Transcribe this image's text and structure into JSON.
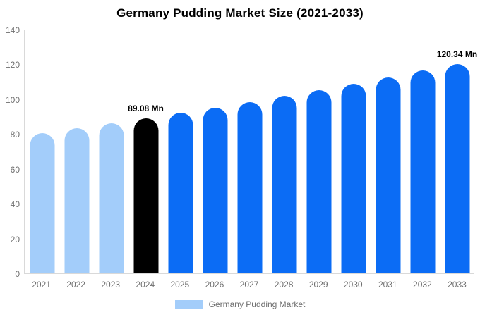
{
  "header": {
    "title": "Germany Pudding Market Size (2021-2033)"
  },
  "chart_data": {
    "type": "bar",
    "title": "Germany Pudding Market Size (2021-2033)",
    "categories": [
      "2021",
      "2022",
      "2023",
      "2024",
      "2025",
      "2026",
      "2027",
      "2028",
      "2029",
      "2030",
      "2031",
      "2032",
      "2033"
    ],
    "values": [
      80.55,
      83.29,
      86.13,
      89.08,
      92.11,
      95.24,
      98.48,
      101.83,
      105.29,
      108.87,
      112.57,
      116.4,
      120.34
    ],
    "bar_colors": [
      "#a3cdfa",
      "#a3cdfa",
      "#a3cdfa",
      "#000000",
      "#0b6cf5",
      "#0b6cf5",
      "#0b6cf5",
      "#0b6cf5",
      "#0b6cf5",
      "#0b6cf5",
      "#0b6cf5",
      "#0b6cf5",
      "#0b6cf5"
    ],
    "annotations": [
      {
        "index": 3,
        "text": "89.08 Mn"
      },
      {
        "index": 12,
        "text": "120.34 Mn"
      }
    ],
    "xlabel": "",
    "ylabel": "",
    "ylim": [
      0,
      140
    ],
    "yticks": [
      0,
      20,
      40,
      60,
      80,
      100,
      120,
      140
    ],
    "grid": false,
    "legend": {
      "label": "Germany Pudding Market",
      "swatch_color": "#a3cdfa",
      "position": "bottom-center"
    }
  },
  "colors": {
    "background": "#ffffff",
    "axis_line": "#d9d9d9",
    "tick_text": "#6e6e6e",
    "title_text": "#000000",
    "annotation_text": "#000000",
    "series_past": "#a3cdfa",
    "series_highlight": "#000000",
    "series_forecast": "#0b6cf5"
  }
}
